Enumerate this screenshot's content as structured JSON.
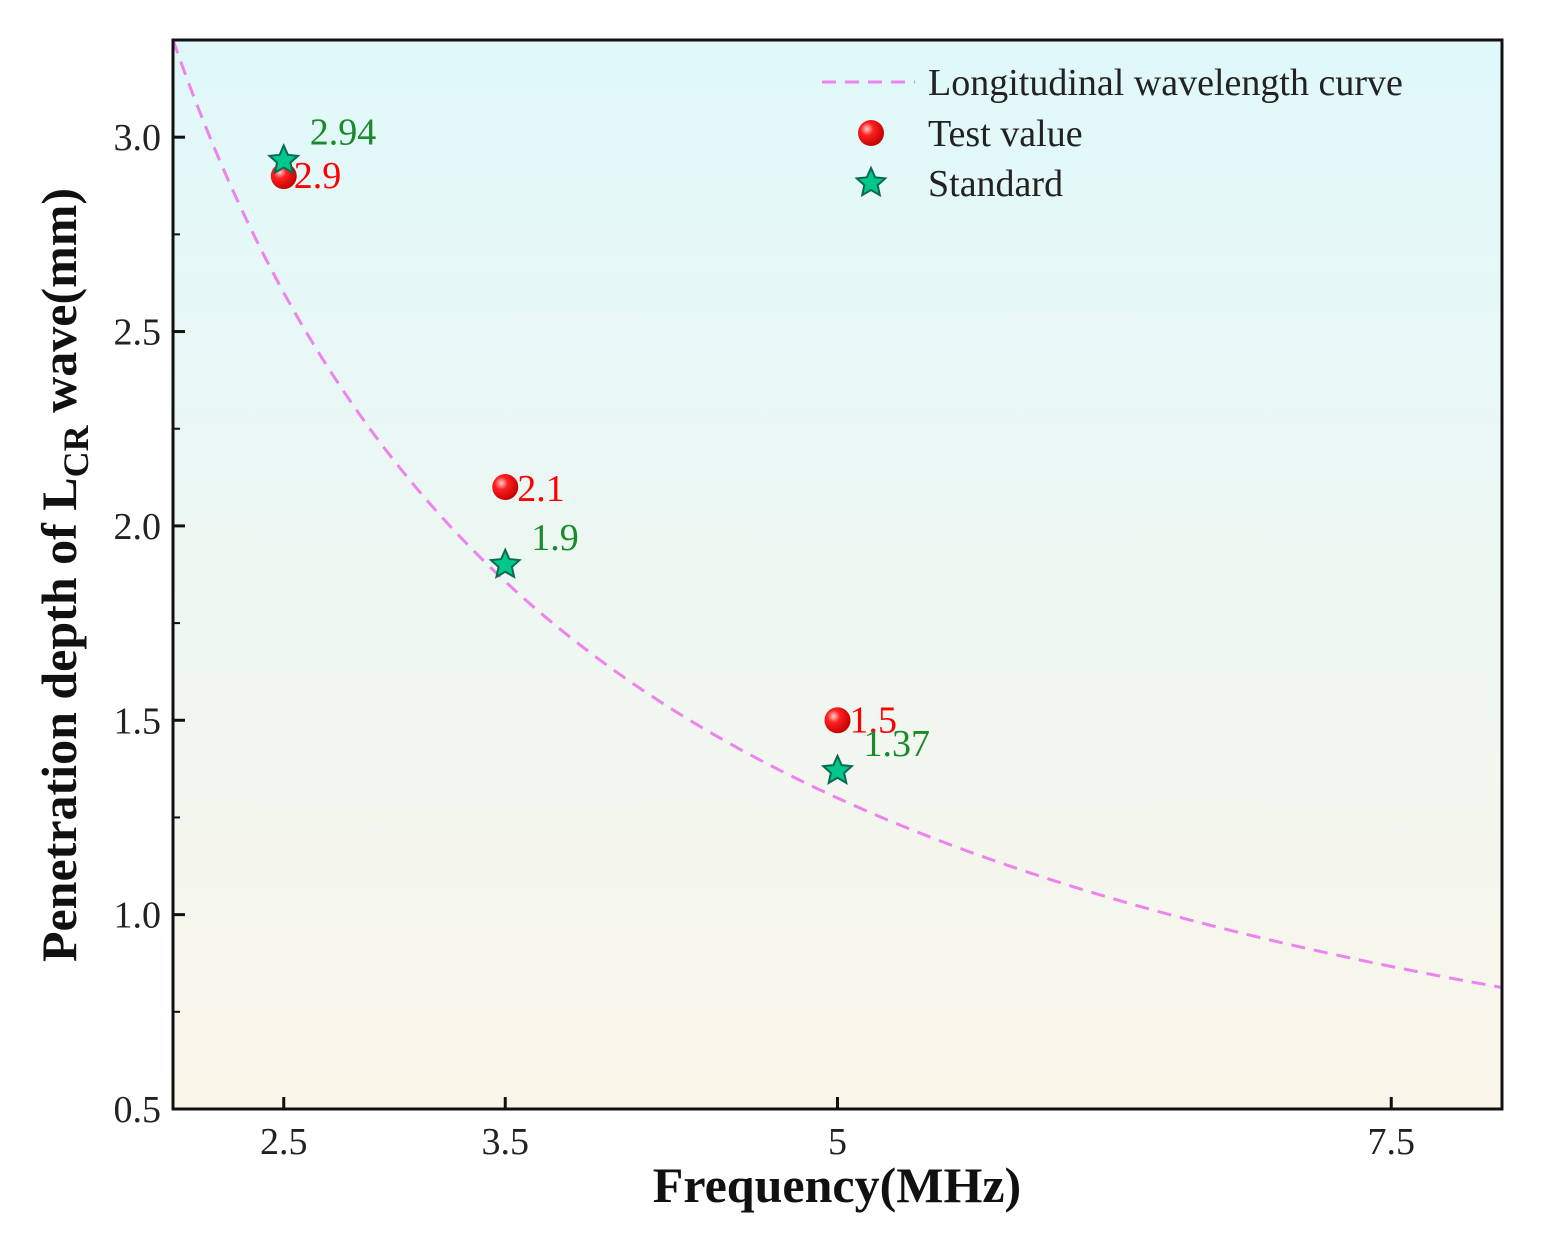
{
  "chart_data": {
    "type": "scatter",
    "title": "",
    "xlabel": "Frequency(MHz)",
    "ylabel": {
      "prefix": "Penetration depth of L",
      "subscript": "CR",
      "suffix": " wave(mm)"
    },
    "xlim": [
      2.0,
      8.0
    ],
    "ylim": [
      0.5,
      3.25
    ],
    "x_ticks": [
      {
        "value": 2.5,
        "label": "2.5"
      },
      {
        "value": 3.5,
        "label": "3.5"
      },
      {
        "value": 5,
        "label": "5"
      },
      {
        "value": 7.5,
        "label": "7.5"
      }
    ],
    "y_ticks": [
      {
        "value": 0.5,
        "label": "0.5"
      },
      {
        "value": 1.0,
        "label": "1.0"
      },
      {
        "value": 1.5,
        "label": "1.5"
      },
      {
        "value": 2.0,
        "label": "2.0"
      },
      {
        "value": 2.5,
        "label": "2.5"
      },
      {
        "value": 3.0,
        "label": "3.0"
      }
    ],
    "curve": {
      "name": "Longitudinal wavelength curve",
      "model": "y = k / x",
      "k": 6.5,
      "x_range": [
        2.0,
        8.0
      ],
      "color": "#ee82ee",
      "style": "dashed"
    },
    "series": [
      {
        "name": "Test value",
        "marker": "circle",
        "color": "#ff0000",
        "points": [
          {
            "x": 2.5,
            "y": 2.9,
            "label": "2.9"
          },
          {
            "x": 3.5,
            "y": 2.1,
            "label": "2.1"
          },
          {
            "x": 5,
            "y": 1.5,
            "label": "1.5"
          }
        ]
      },
      {
        "name": "Standard",
        "marker": "star",
        "color": "#00c88c",
        "label_color": "#1a8a2a",
        "points": [
          {
            "x": 2.5,
            "y": 2.94,
            "label": "2.94"
          },
          {
            "x": 3.5,
            "y": 1.9,
            "label": "1.9"
          },
          {
            "x": 5,
            "y": 1.37,
            "label": "1.37"
          }
        ]
      }
    ],
    "legend": {
      "location": "top-right"
    },
    "background_gradient": {
      "top": "#e0f8fa",
      "bottom": "#faf6ea"
    },
    "grid": false
  }
}
